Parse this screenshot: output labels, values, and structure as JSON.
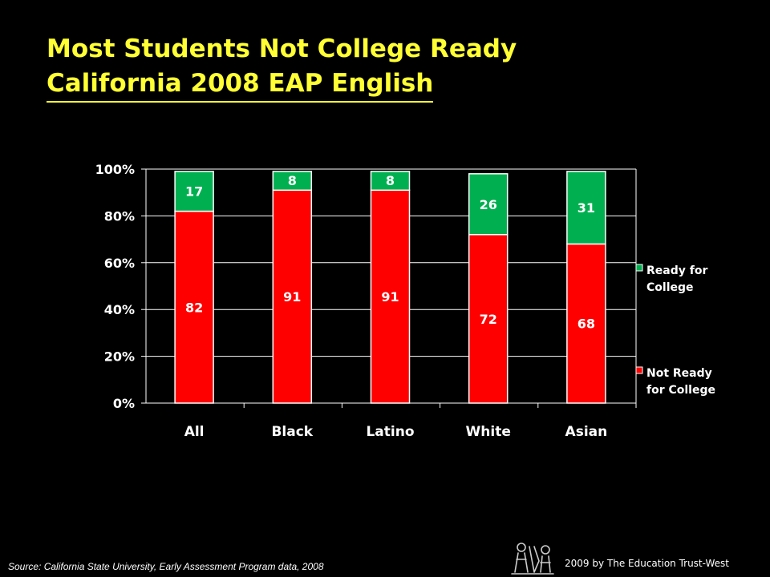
{
  "title": {
    "line1": "Most Students Not College Ready",
    "line2": "California 2008 EAP English"
  },
  "source": "Source: California State University, Early Assessment Program data, 2008",
  "credit": "2009 by The Education Trust-West",
  "logo_icon": "education-trust-logo-icon",
  "colors": {
    "background": "#000000",
    "title": "#FFFF33",
    "ready": "#00B050",
    "not_ready": "#FF0000",
    "text": "#FFFFFF"
  },
  "chart_data": {
    "type": "bar",
    "stacked": true,
    "categories": [
      "All",
      "Black",
      "Latino",
      "White",
      "Asian"
    ],
    "series": [
      {
        "name": "Not Ready for College",
        "legend_label": [
          "Not Ready",
          "for College"
        ],
        "color": "#FF0000",
        "values": [
          82,
          91,
          91,
          72,
          68
        ]
      },
      {
        "name": "Ready for College",
        "legend_label": [
          "Ready for",
          "College"
        ],
        "color": "#00B050",
        "values": [
          17,
          8,
          8,
          26,
          31
        ]
      }
    ],
    "yticks": [
      "0%",
      "20%",
      "40%",
      "60%",
      "80%",
      "100%"
    ],
    "ylim": [
      0,
      100
    ],
    "legend_position": "right",
    "grid": true
  }
}
